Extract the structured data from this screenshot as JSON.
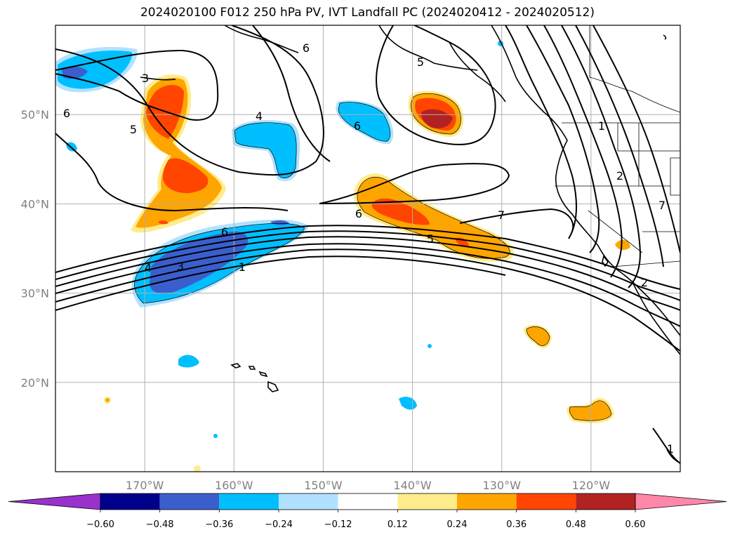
{
  "title": "2024020100 F012 250 hPa PV, IVT Landfall PC (2024020412 - 2024020512)",
  "map": {
    "lon_range": [
      180,
      110
    ],
    "lat_range": [
      10,
      60
    ],
    "lon_ticks": [
      {
        "lon": 170,
        "label": "170°W"
      },
      {
        "lon": 160,
        "label": "160°W"
      },
      {
        "lon": 150,
        "label": "150°W"
      },
      {
        "lon": 140,
        "label": "140°W"
      },
      {
        "lon": 130,
        "label": "130°W"
      },
      {
        "lon": 120,
        "label": "120°W"
      }
    ],
    "lat_ticks": [
      {
        "lat": 50,
        "label": "50°N"
      },
      {
        "lat": 40,
        "label": "40°N"
      },
      {
        "lat": 30,
        "label": "30°N"
      },
      {
        "lat": 20,
        "label": "20°N"
      }
    ],
    "contour_labels": [
      "1",
      "2",
      "3",
      "4",
      "5",
      "6",
      "7"
    ]
  },
  "colorbar": {
    "colors": [
      "#9932cc",
      "#00008b",
      "#3a5fcd",
      "#00bfff",
      "#b0e2ff",
      "#ffffff",
      "#ffec8b",
      "#ffa500",
      "#ff4500",
      "#b22222",
      "#ff88aa"
    ],
    "tick_labels": [
      "−0.60",
      "−0.48",
      "−0.36",
      "−0.24",
      "−0.12",
      "0.12",
      "0.24",
      "0.36",
      "0.48",
      "0.60"
    ]
  }
}
